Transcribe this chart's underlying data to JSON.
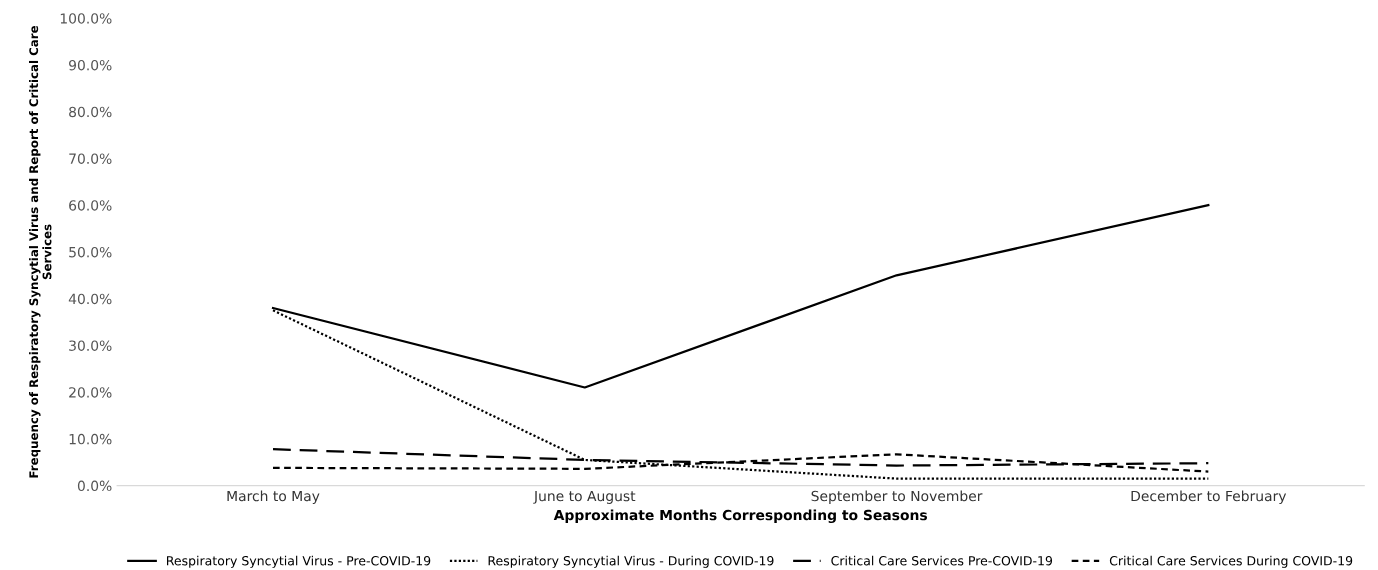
{
  "chart_data": {
    "type": "line",
    "xlabel": "Approximate Months Corresponding to Seasons",
    "ylabel": "Frequency of Respiratory Syncytial Virus and Report of Critical Care\nServices",
    "categories": [
      "March to May",
      "June to August",
      "September to November",
      "December to February"
    ],
    "series": [
      {
        "name": "Respiratory Syncytial Virus - Pre-COVID-19",
        "color": "#000000",
        "line_style": "solid",
        "values": [
          38.0,
          21.0,
          45.0,
          60.0
        ]
      },
      {
        "name": "Respiratory Syncytial Virus - During COVID-19",
        "color": "#000000",
        "line_style": "dotted",
        "values": [
          37.5,
          5.5,
          1.5,
          1.5
        ]
      },
      {
        "name": "Critical Care Services Pre-COVID-19",
        "color": "#000000",
        "line_style": "dashed",
        "values": [
          7.8,
          5.5,
          4.3,
          4.8
        ]
      },
      {
        "name": "Critical Care Services During COVID-19",
        "color": "#000000",
        "line_style": "dashed",
        "values": [
          3.8,
          3.6,
          6.7,
          3.0
        ]
      }
    ],
    "ylim": [
      0,
      100
    ],
    "yticks": [
      {
        "value": 0,
        "label": "0.0%"
      },
      {
        "value": 10,
        "label": "10.0%"
      },
      {
        "value": 20,
        "label": "20.0%"
      },
      {
        "value": 30,
        "label": "30.0%"
      },
      {
        "value": 40,
        "label": "40.0%"
      },
      {
        "value": 50,
        "label": "50.0%"
      },
      {
        "value": 60,
        "label": "60.0%"
      },
      {
        "value": 70,
        "label": "70.0%"
      },
      {
        "value": 80,
        "label": "80.0%"
      },
      {
        "value": 90,
        "label": "90.0%"
      },
      {
        "value": 100,
        "label": "100.0%"
      }
    ],
    "grid": false,
    "legend": "bottom",
    "marker": "none"
  }
}
